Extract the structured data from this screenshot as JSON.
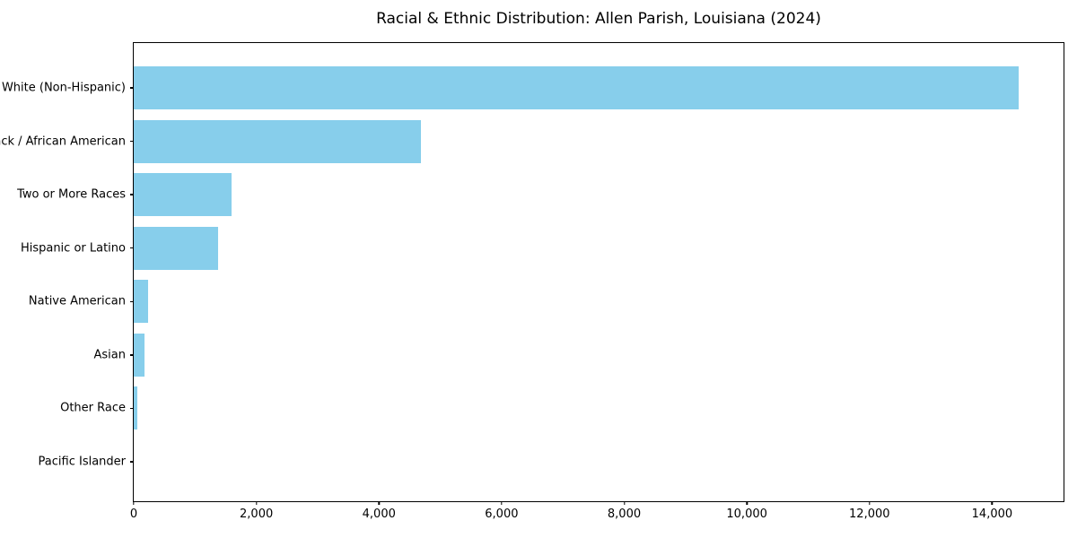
{
  "page": {
    "background": "#ffffff"
  },
  "chart_data": {
    "type": "bar",
    "orientation": "horizontal",
    "title": "Racial & Ethnic Distribution: Allen Parish, Louisiana (2024)",
    "xlabel": "",
    "ylabel": "",
    "categories": [
      "White (Non-Hispanic)",
      "Black / African American",
      "Two or More Races",
      "Hispanic or Latino",
      "Native American",
      "Asian",
      "Other Race",
      "Pacific Islander"
    ],
    "values": [
      14430,
      4680,
      1600,
      1370,
      240,
      170,
      55,
      0
    ],
    "xlim": [
      0,
      15165
    ],
    "xticks": [
      0,
      2000,
      4000,
      6000,
      8000,
      10000,
      12000,
      14000
    ],
    "xtick_labels": [
      "0",
      "2,000",
      "4,000",
      "6,000",
      "8,000",
      "10,000",
      "12,000",
      "14,000"
    ],
    "bar_color": "#87CEEB",
    "frame_color": "#000000",
    "text_color": "#000000",
    "grid": false,
    "legend": false,
    "background": "#ffffff"
  }
}
